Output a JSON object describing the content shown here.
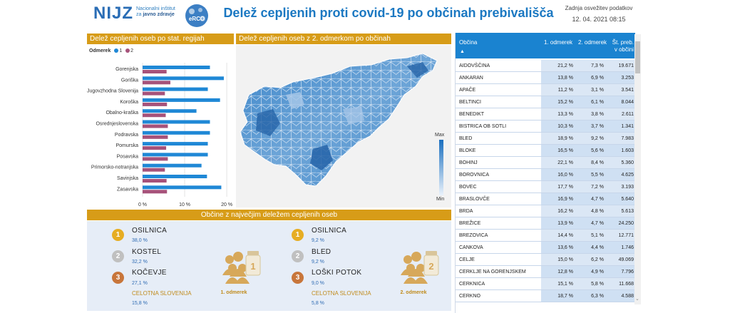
{
  "header": {
    "logo_text": "NIJZ",
    "logo_sub1": "Nacionalni inštitut",
    "logo_sub2": "za",
    "logo_sub3": "javno zdravje",
    "partner_logo_text": "eRCO",
    "title": "Delež cepljenih proti covid-19 po občinah prebivališča",
    "update_label": "Zadnja osvežitev podatkov",
    "update_date": "12. 04. 2021 08:15"
  },
  "regions_panel": {
    "title": "Delež cepljenih oseb po stat. regijah",
    "legend_label": "Odmerek",
    "legend_1": "1",
    "legend_2": "2",
    "colors": {
      "dose1": "#1f88d6",
      "dose2": "#a6527a"
    }
  },
  "chart_data": {
    "type": "bar",
    "orientation": "horizontal",
    "categories": [
      "Gorenjska",
      "Goriška",
      "Jugovzhodna Slovenija",
      "Koroška",
      "Obalno-kraška",
      "Osrednjeslovenska",
      "Podravska",
      "Pomurska",
      "Posavska",
      "Primorsko-notranjska",
      "Savinjska",
      "Zasavska"
    ],
    "series": [
      {
        "name": "1",
        "values": [
          16.0,
          19.3,
          15.5,
          18.4,
          12.8,
          16.0,
          16.0,
          15.5,
          15.5,
          14.0,
          15.3,
          18.7
        ]
      },
      {
        "name": "2",
        "values": [
          5.7,
          6.6,
          5.3,
          5.8,
          5.5,
          6.0,
          6.0,
          5.6,
          6.0,
          5.3,
          5.7,
          5.8
        ]
      }
    ],
    "xlim": [
      0,
      21
    ],
    "x_ticks": [
      "0 %",
      "10 %",
      "20 %"
    ]
  },
  "map_panel": {
    "title": "Delež cepljenih oseb z 2. odmerkom po občinah",
    "scale_max": "Max",
    "scale_min": "Min"
  },
  "top_panel": {
    "title": "Občine z največjim deležem cepljenih oseb",
    "dose1": {
      "items": [
        {
          "rank": "1",
          "name": "OSILNICA",
          "value": "38,0 %"
        },
        {
          "rank": "2",
          "name": "KOSTEL",
          "value": "32,2 %"
        },
        {
          "rank": "3",
          "name": "KOČEVJE",
          "value": "27,1 %"
        }
      ],
      "slovenia_label": "CELOTNA SLOVENIJA",
      "slovenia_value": "15,8 %",
      "dose_label": "1. odmerek",
      "icon_number": "1"
    },
    "dose2": {
      "items": [
        {
          "rank": "1",
          "name": "OSILNICA",
          "value": "9,2 %"
        },
        {
          "rank": "2",
          "name": "BLED",
          "value": "9,2 %"
        },
        {
          "rank": "3",
          "name": "LOŠKI POTOK",
          "value": "9,0 %"
        }
      ],
      "slovenia_label": "CELOTNA SLOVENIJA",
      "slovenia_value": "5,8 %",
      "dose_label": "2. odmerek",
      "icon_number": "2"
    }
  },
  "table": {
    "columns": [
      "Občina",
      "1. odmerek",
      "2. odmerek",
      "Št. preb. v občini"
    ],
    "sort_icon": "sort-ascending-icon",
    "rows": [
      [
        "AIDOVŠČINA",
        "21,2 %",
        "7,3 %",
        "19.671"
      ],
      [
        "ANKARAN",
        "13,8 %",
        "6,9 %",
        "3.253"
      ],
      [
        "APAČE",
        "11,2 %",
        "3,1 %",
        "3.541"
      ],
      [
        "BELTINCI",
        "15,2 %",
        "6,1 %",
        "8.044"
      ],
      [
        "BENEDIKT",
        "13,3 %",
        "3,8 %",
        "2.611"
      ],
      [
        "BISTRICA OB SOTLI",
        "10,3 %",
        "3,7 %",
        "1.341"
      ],
      [
        "BLED",
        "18,9 %",
        "9,2 %",
        "7.983"
      ],
      [
        "BLOKE",
        "16,5 %",
        "5,6 %",
        "1.603"
      ],
      [
        "BOHINJ",
        "22,1 %",
        "8,4 %",
        "5.360"
      ],
      [
        "BOROVNICA",
        "16,0 %",
        "5,5 %",
        "4.625"
      ],
      [
        "BOVEC",
        "17,7 %",
        "7,2 %",
        "3.193"
      ],
      [
        "BRASLOVČE",
        "16,9 %",
        "4,7 %",
        "5.640"
      ],
      [
        "BRDA",
        "16,2 %",
        "4,8 %",
        "5.613"
      ],
      [
        "BREŽICE",
        "13,9 %",
        "4,7 %",
        "24.250"
      ],
      [
        "BREZOVICA",
        "14,4 %",
        "5,1 %",
        "12.771"
      ],
      [
        "CANKOVA",
        "13,6 %",
        "4,4 %",
        "1.746"
      ],
      [
        "CELJE",
        "15,0 %",
        "6,2 %",
        "49.069"
      ],
      [
        "CERKLJE NA GORENJSKEM",
        "12,8 %",
        "4,9 %",
        "7.796"
      ],
      [
        "CERKNICA",
        "15,1 %",
        "5,8 %",
        "11.668"
      ],
      [
        "CERKNO",
        "18,7 %",
        "6,3 %",
        "4.588"
      ]
    ]
  }
}
